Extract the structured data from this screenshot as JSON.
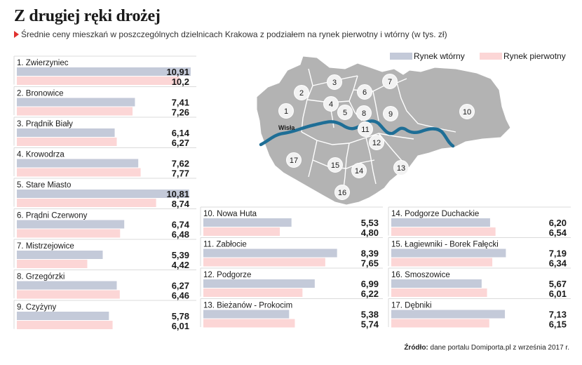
{
  "title": "Z drugiej ręki drożej",
  "subtitle": "Średnie ceny mieszkań w poszczególnych dzielnicach Krakowa z podziałem na rynek pierwotny i wtórny (w tys. zł)",
  "source_label": "Źródło:",
  "source_text": "dane portalu Domiporta.pl z września 2017 r.",
  "colors": {
    "secondary": "#c4cad9",
    "primary": "#fcd6d6",
    "map": "#b3b3b3",
    "river": "#1e6e96",
    "title_marker": "#e0312f"
  },
  "map": {
    "river_label": "Wisła"
  },
  "chart_data": {
    "type": "bar",
    "title": "Z drugiej ręki drożej",
    "subtitle": "Średnie ceny mieszkań w poszczególnych dzielnicach Krakowa z podziałem na rynek pierwotny i wtórny (w tys. zł)",
    "xlim": [
      0,
      11
    ],
    "legend_position": "top-right",
    "categories": [
      "1. Zwierzyniec",
      "2. Bronowice",
      "3. Prądnik Biały",
      "4. Krowodrza",
      "5. Stare Miasto",
      "6. Prądni Czerwony",
      "7. Mistrzejowice",
      "8. Grzegórzki",
      "9. Czyżyny",
      "10. Nowa Huta",
      "11. Zabłocie",
      "12. Podgorze",
      "13. Bieżanów - Prokocim",
      "14. Podgorze Duchackie",
      "15. Łagiewniki - Borek Fałęcki",
      "16. Smoszowice",
      "17. Dębniki"
    ],
    "series": [
      {
        "name": "Rynek wtórny",
        "values": [
          10.91,
          7.41,
          6.14,
          7.62,
          10.81,
          6.74,
          5.39,
          6.27,
          5.78,
          5.53,
          8.39,
          6.99,
          5.38,
          6.2,
          7.19,
          5.67,
          7.13
        ],
        "labels": [
          "10,91",
          "7,41",
          "6,14",
          "7,62",
          "10,81",
          "6,74",
          "5,39",
          "6,27",
          "5,78",
          "5,53",
          "8,39",
          "6,99",
          "5,38",
          "6,20",
          "7,19",
          "5,67",
          "7,13"
        ]
      },
      {
        "name": "Rynek pierwotny",
        "values": [
          10.2,
          7.26,
          6.27,
          7.77,
          8.74,
          6.48,
          4.42,
          6.46,
          6.01,
          4.8,
          7.65,
          6.22,
          5.74,
          6.54,
          6.34,
          6.01,
          6.15
        ],
        "labels": [
          "10,2",
          "7,26",
          "6,27",
          "7,77",
          "8,74",
          "6,48",
          "4,42",
          "6,46",
          "6,01",
          "4,80",
          "7,65",
          "6,22",
          "5,74",
          "6,54",
          "6,34",
          "6,01",
          "6,15"
        ]
      }
    ]
  }
}
